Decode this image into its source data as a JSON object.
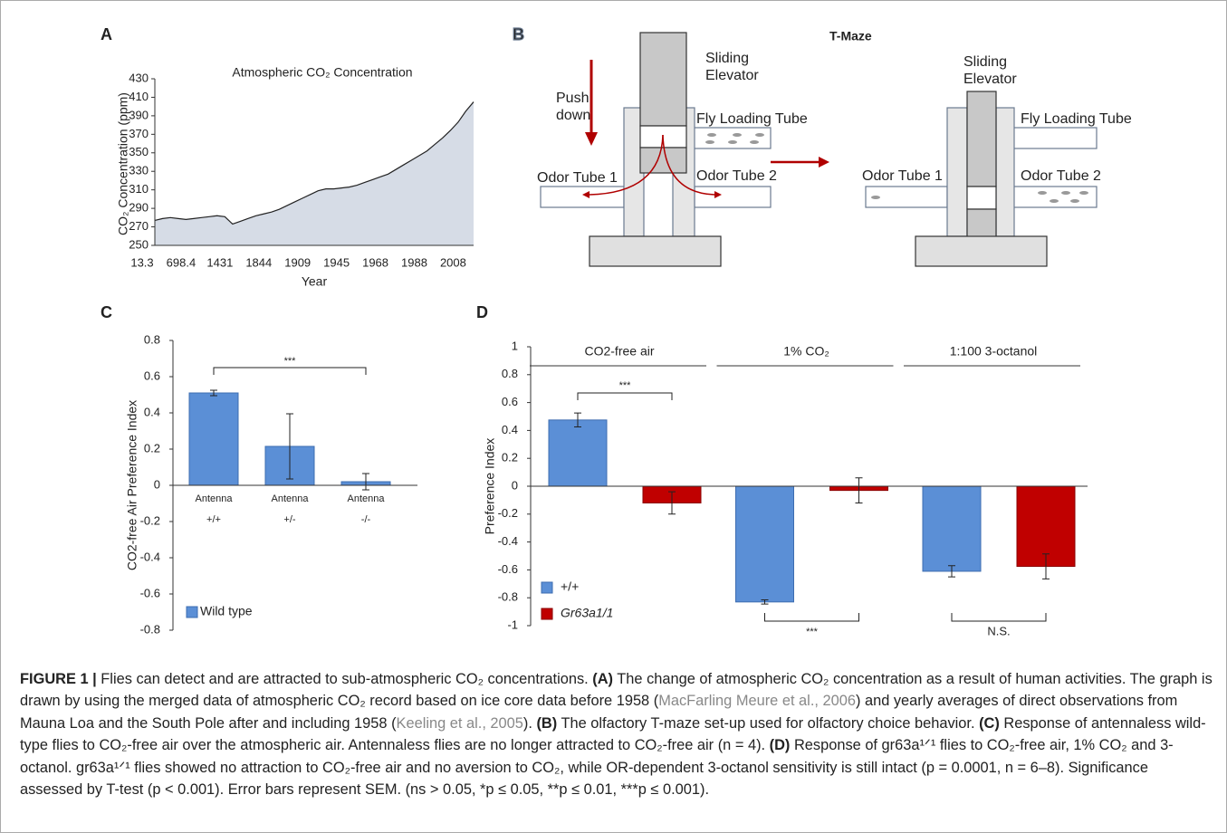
{
  "chart_data": [
    {
      "type": "area",
      "panel": "A",
      "title": "Atmospheric CO₂ Concentration",
      "x_label": "Year",
      "y_label": "CO₂ Concentration (ppm)",
      "categories": [
        "13.3",
        null,
        null,
        null,
        null,
        "698.4",
        null,
        null,
        null,
        null,
        "1431",
        null,
        null,
        null,
        null,
        "1844",
        null,
        null,
        null,
        null,
        "1909",
        null,
        null,
        null,
        null,
        "1945",
        null,
        null,
        null,
        null,
        "1968",
        null,
        null,
        null,
        null,
        "1988",
        null,
        null,
        null,
        null,
        "2008",
        null
      ],
      "values": [
        277,
        279,
        280,
        279,
        278,
        279,
        280,
        281,
        282,
        281,
        273,
        276,
        279,
        282,
        284,
        286,
        289,
        293,
        297,
        301,
        305,
        309,
        311,
        311,
        312,
        313,
        315,
        318,
        321,
        324,
        327,
        332,
        337,
        342,
        347,
        352,
        359,
        366,
        374,
        383,
        395,
        405
      ],
      "color": "#d6dce6",
      "ylim": [
        250,
        430
      ],
      "yticks": [
        250,
        270,
        290,
        310,
        330,
        350,
        370,
        390,
        410,
        430
      ]
    },
    {
      "type": "bar",
      "panel": "C",
      "y_label": "CO2-free Air Preference Index",
      "categories": [
        [
          "Antenna",
          "+/+"
        ],
        [
          "Antenna",
          "+/-"
        ],
        [
          "Antenna",
          "-/-"
        ]
      ],
      "series": [
        {
          "name": "Wild type",
          "color": "#5b8fd6",
          "values": [
            0.51,
            0.215,
            0.02
          ],
          "errors": [
            0.015,
            0.18,
            0.045
          ]
        }
      ],
      "annotations": [
        "***"
      ],
      "ylim": [
        -0.8,
        0.8
      ],
      "yticks": [
        -0.8,
        -0.6,
        -0.4,
        -0.2,
        0,
        0.2,
        0.4,
        0.6,
        0.8
      ],
      "legend": "lower-left"
    },
    {
      "type": "bar",
      "panel": "D",
      "y_label": "Preference Index",
      "categories": [
        "CO2-free air",
        "1% CO₂",
        "1:100  3-octanol"
      ],
      "series": [
        {
          "name": "+/+",
          "color": "#5b8fd6",
          "values": [
            0.475,
            -0.83,
            -0.61
          ],
          "errors": [
            0.05,
            0.015,
            0.04
          ]
        },
        {
          "name": "Gr63a1/1",
          "color": "#c00000",
          "values": [
            -0.12,
            -0.03,
            -0.575
          ],
          "errors": [
            0.08,
            0.09,
            0.09
          ]
        }
      ],
      "annotations": [
        "***",
        "***",
        "N.S."
      ],
      "ylim": [
        -1,
        1
      ],
      "yticks": [
        -1,
        -0.8,
        -0.6,
        -0.4,
        -0.2,
        0,
        0.2,
        0.4,
        0.6,
        0.8,
        1
      ],
      "legend": "lower-left"
    }
  ],
  "diagram": {
    "panel": "B",
    "title": "T-Maze",
    "left": {
      "elevator": [
        "Sliding",
        "Elevator"
      ],
      "push": [
        "Push",
        "down"
      ],
      "loading": "Fly Loading Tube",
      "odor1": "Odor Tube 1",
      "odor2": "Odor Tube 2"
    },
    "right": {
      "elevator": [
        "Sliding",
        "Elevator"
      ],
      "loading": "Fly Loading Tube",
      "odor1": "Odor Tube 1",
      "odor2": "Odor Tube 2"
    }
  },
  "caption": [
    "FIGURE 1 |",
    " Flies can detect and are attracted to sub-atmospheric CO₂ concentrations. ",
    "(A)",
    " The change of atmospheric CO₂ concentration as a result of human activities. The graph is drawn by using the merged data of atmospheric CO₂ record based on ice core data before 1958 (",
    "MacFarling Meure et al., 2006",
    ") and yearly averages of direct observations from Mauna Loa and the South Pole after and including 1958 (",
    "Keeling et al., 2005",
    "). ",
    "(B)",
    " The olfactory T-maze set-up used for olfactory choice behavior. ",
    "(C)",
    " Response of antennaless wild-type flies to CO₂-free air over the atmospheric air. Antennaless flies are no longer attracted to CO₂-free air (n = 4). ",
    "(D)",
    " Response of gr63a¹ᐟ¹ flies to CO₂-free air, 1% CO₂ and 3-octanol. gr63a¹ᐟ¹ flies showed no attraction to CO₂-free air and no aversion to CO₂, while OR-dependent 3-octanol sensitivity is still intact (p = 0.0001, n = 6–8). Significance assessed by T-test (p < 0.001). Error bars represent SEM. (ns > 0.05, *p ≤ 0.05, **p ≤ 0.01, ***p ≤ 0.001)."
  ]
}
